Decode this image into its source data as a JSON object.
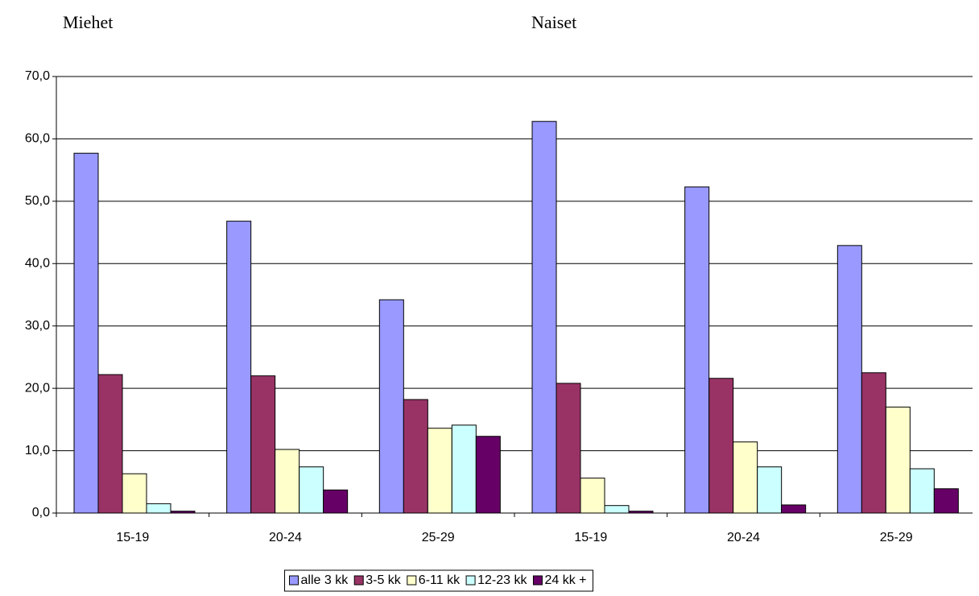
{
  "chart_data": {
    "type": "bar",
    "annotations": [
      "Miehet",
      "Naiset"
    ],
    "categories": [
      "15-19",
      "20-24",
      "25-29",
      "15-19",
      "20-24",
      "25-29"
    ],
    "series": [
      {
        "name": "alle 3 kk",
        "color": "#9999ff",
        "values": [
          57.7,
          46.8,
          34.2,
          62.8,
          52.3,
          42.9
        ]
      },
      {
        "name": "3-5 kk",
        "color": "#993366",
        "values": [
          22.2,
          22.0,
          18.2,
          20.8,
          21.6,
          22.5
        ]
      },
      {
        "name": "6-11 kk",
        "color": "#ffffcc",
        "values": [
          6.3,
          10.2,
          13.6,
          5.6,
          11.4,
          17.0
        ]
      },
      {
        "name": "12-23 kk",
        "color": "#ccffff",
        "values": [
          1.5,
          7.4,
          14.1,
          1.2,
          7.4,
          7.1
        ]
      },
      {
        "name": "24 kk +",
        "color": "#660066",
        "values": [
          0.3,
          3.7,
          12.3,
          0.3,
          1.3,
          3.9
        ]
      }
    ],
    "ylim": [
      0,
      70
    ],
    "yticks": [
      {
        "value": 0,
        "label": "0,0"
      },
      {
        "value": 10,
        "label": "10,0"
      },
      {
        "value": 20,
        "label": "20,0"
      },
      {
        "value": 30,
        "label": "30,0"
      },
      {
        "value": 40,
        "label": "40,0"
      },
      {
        "value": 50,
        "label": "50,0"
      },
      {
        "value": 60,
        "label": "60,0"
      },
      {
        "value": 70,
        "label": "70,0"
      }
    ],
    "grid": true,
    "legend": "bottom"
  }
}
